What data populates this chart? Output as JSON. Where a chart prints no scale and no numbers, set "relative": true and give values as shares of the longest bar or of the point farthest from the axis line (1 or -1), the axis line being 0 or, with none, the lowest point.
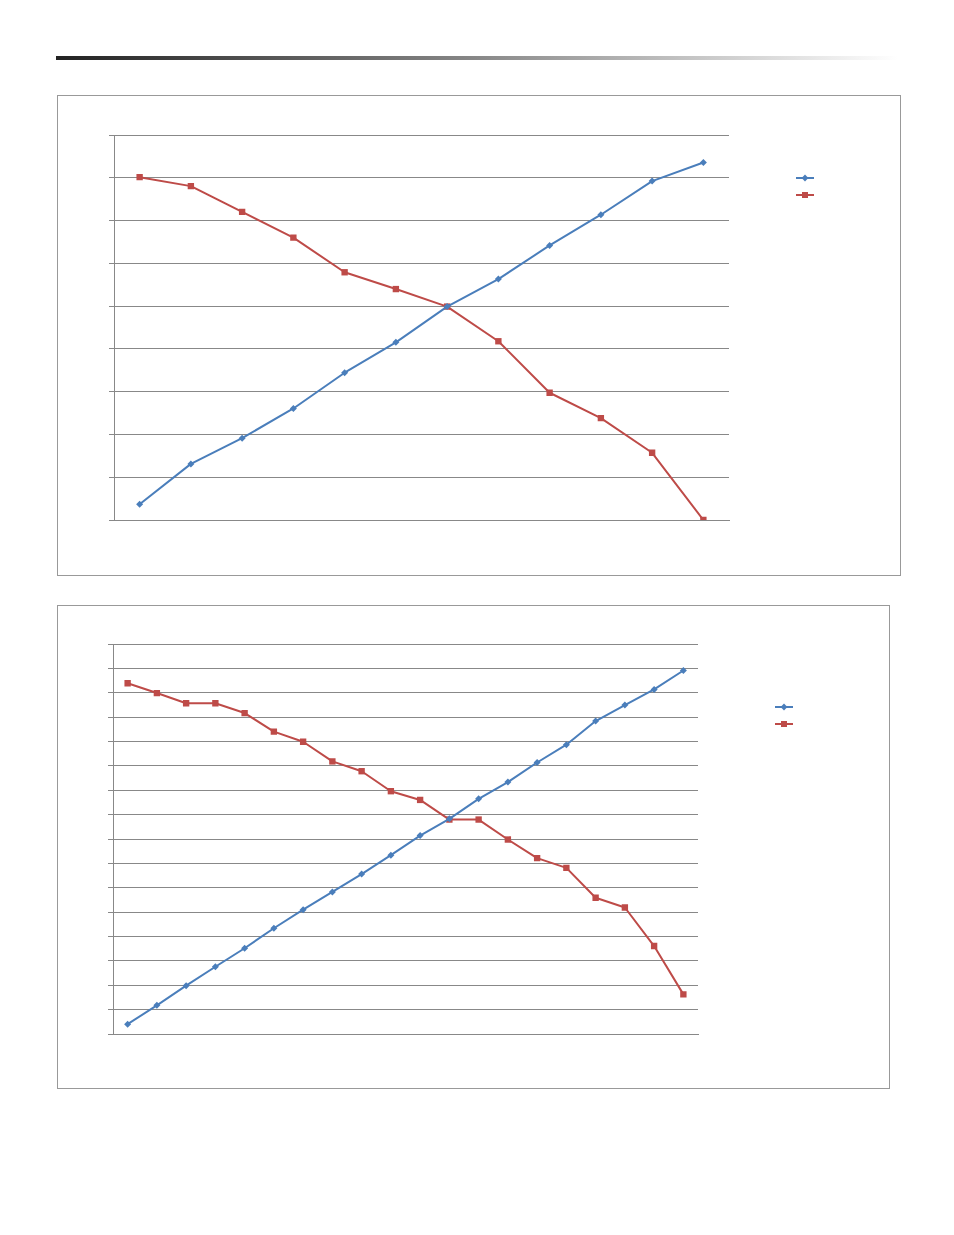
{
  "chart_data": [
    {
      "type": "line",
      "relative": true,
      "grid": "y",
      "categories": [
        null,
        null,
        null,
        null,
        null,
        null,
        null,
        null,
        null,
        null,
        null,
        null
      ],
      "series": [
        {
          "color": "#4a7ebb",
          "marker": "diamond",
          "values": [
            0.044,
            0.157,
            0.229,
            0.312,
            0.412,
            0.497,
            0.597,
            0.674,
            0.768,
            0.854,
            0.948,
            1
          ]
        },
        {
          "color": "#be4b48",
          "marker": "square",
          "values": [
            0.959,
            0.934,
            0.862,
            0.79,
            0.693,
            0.646,
            0.597,
            0.5,
            0.356,
            0.285,
            0.188,
            0
          ]
        }
      ]
    },
    {
      "type": "line",
      "relative": true,
      "grid": "y",
      "categories": [
        null,
        null,
        null,
        null,
        null,
        null,
        null,
        null,
        null,
        null,
        null,
        null,
        null,
        null,
        null,
        null,
        null,
        null,
        null,
        null
      ],
      "series": [
        {
          "color": "#4a7ebb",
          "marker": "diamond",
          "values": [
            0.027,
            0.079,
            0.133,
            0.185,
            0.236,
            0.291,
            0.342,
            0.391,
            0.44,
            0.492,
            0.546,
            0.592,
            0.647,
            0.693,
            0.747,
            0.796,
            0.861,
            0.905,
            0.948,
            1
          ]
        },
        {
          "color": "#be4b48",
          "marker": "square",
          "values": [
            0.965,
            0.938,
            0.91,
            0.91,
            0.883,
            0.832,
            0.804,
            0.75,
            0.723,
            0.668,
            0.644,
            0.59,
            0.59,
            0.535,
            0.484,
            0.457,
            0.375,
            0.348,
            0.242,
            0.109
          ]
        }
      ]
    }
  ]
}
